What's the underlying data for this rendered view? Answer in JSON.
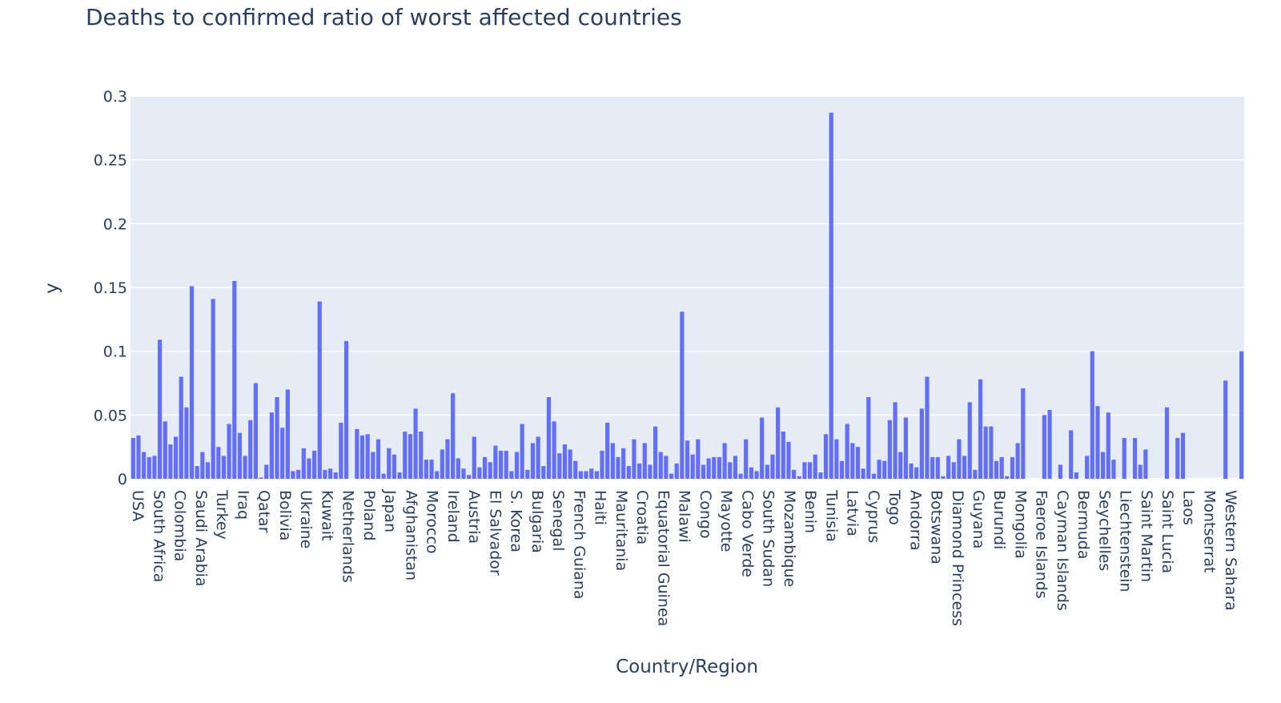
{
  "chart_data": {
    "type": "bar",
    "title": "Deaths to confirmed ratio of worst affected countries",
    "xlabel": "Country/Region",
    "ylabel": "y",
    "ylim": [
      0,
      0.3
    ],
    "yticks": [
      0,
      0.05,
      0.1,
      0.15,
      0.2,
      0.25,
      0.3
    ],
    "ytick_labels": [
      "0",
      "0.05",
      "0.1",
      "0.15",
      "0.2",
      "0.25",
      "0.3"
    ],
    "grid": true,
    "tick_labels": [
      "USA",
      "South Africa",
      "Colombia",
      "Saudi Arabia",
      "Turkey",
      "Iraq",
      "Qatar",
      "Bolivia",
      "Ukraine",
      "Kuwait",
      "Netherlands",
      "Poland",
      "Japan",
      "Afghanistan",
      "Morocco",
      "Ireland",
      "Austria",
      "El Salvador",
      "S. Korea",
      "Bulgaria",
      "Senegal",
      "French Guiana",
      "Haiti",
      "Mauritania",
      "Croatia",
      "Equatorial Guinea",
      "Malawi",
      "Congo",
      "Mayotte",
      "Cabo Verde",
      "South Sudan",
      "Mozambique",
      "Benin",
      "Tunisia",
      "Latvia",
      "Cyprus",
      "Togo",
      "Andorra",
      "Botswana",
      "Diamond Princess",
      "Guyana",
      "Burundi",
      "Mongolia",
      "Faeroe Islands",
      "Cayman Islands",
      "Bermuda",
      "Seychelles",
      "Liechtenstein",
      "Saint Martin",
      "Saint Lucia",
      "Laos",
      "Montserrat",
      "Western Sahara"
    ],
    "values": [
      0.032,
      0.034,
      0.021,
      0.017,
      0.018,
      0.109,
      0.045,
      0.027,
      0.033,
      0.08,
      0.056,
      0.151,
      0.01,
      0.021,
      0.013,
      0.141,
      0.025,
      0.018,
      0.043,
      0.155,
      0.036,
      0.018,
      0.046,
      0.075,
      0.001,
      0.011,
      0.052,
      0.064,
      0.04,
      0.07,
      0.006,
      0.007,
      0.024,
      0.016,
      0.022,
      0.139,
      0.007,
      0.008,
      0.005,
      0.044,
      0.108,
      0.0,
      0.039,
      0.034,
      0.035,
      0.021,
      0.031,
      0.004,
      0.024,
      0.019,
      0.005,
      0.037,
      0.035,
      0.055,
      0.037,
      0.015,
      0.015,
      0.006,
      0.023,
      0.031,
      0.067,
      0.016,
      0.008,
      0.003,
      0.033,
      0.009,
      0.017,
      0.013,
      0.026,
      0.022,
      0.022,
      0.006,
      0.021,
      0.043,
      0.007,
      0.028,
      0.033,
      0.01,
      0.064,
      0.045,
      0.02,
      0.027,
      0.023,
      0.014,
      0.006,
      0.006,
      0.008,
      0.006,
      0.022,
      0.044,
      0.028,
      0.017,
      0.024,
      0.01,
      0.031,
      0.012,
      0.028,
      0.011,
      0.041,
      0.021,
      0.018,
      0.004,
      0.012,
      0.131,
      0.03,
      0.019,
      0.031,
      0.011,
      0.016,
      0.017,
      0.017,
      0.028,
      0.013,
      0.018,
      0.004,
      0.031,
      0.009,
      0.006,
      0.048,
      0.011,
      0.019,
      0.056,
      0.037,
      0.029,
      0.007,
      0.002,
      0.013,
      0.013,
      0.019,
      0.005,
      0.035,
      0.287,
      0.031,
      0.014,
      0.043,
      0.028,
      0.025,
      0.008,
      0.064,
      0.004,
      0.015,
      0.014,
      0.046,
      0.06,
      0.021,
      0.048,
      0.012,
      0.009,
      0.055,
      0.08,
      0.017,
      0.017,
      0.002,
      0.018,
      0.013,
      0.031,
      0.018,
      0.06,
      0.007,
      0.078,
      0.041,
      0.041,
      0.014,
      0.017,
      0.002,
      0.017,
      0.028,
      0.071,
      0,
      0,
      0,
      0.05,
      0.054,
      0,
      0.011,
      0,
      0.038,
      0.005,
      0,
      0.018,
      0.1,
      0.057,
      0.021,
      0.052,
      0.015,
      0,
      0.032,
      0,
      0.032,
      0.011,
      0.023,
      0,
      0,
      0,
      0.056,
      0,
      0.032,
      0.036,
      0,
      0,
      0,
      0,
      0,
      0,
      0,
      0.077,
      0,
      0,
      0.1
    ]
  },
  "colors": {
    "bar": "#636efa",
    "plot_bg": "#e5ecf6",
    "grid": "#ffffff",
    "text": "#2a3f5f"
  }
}
